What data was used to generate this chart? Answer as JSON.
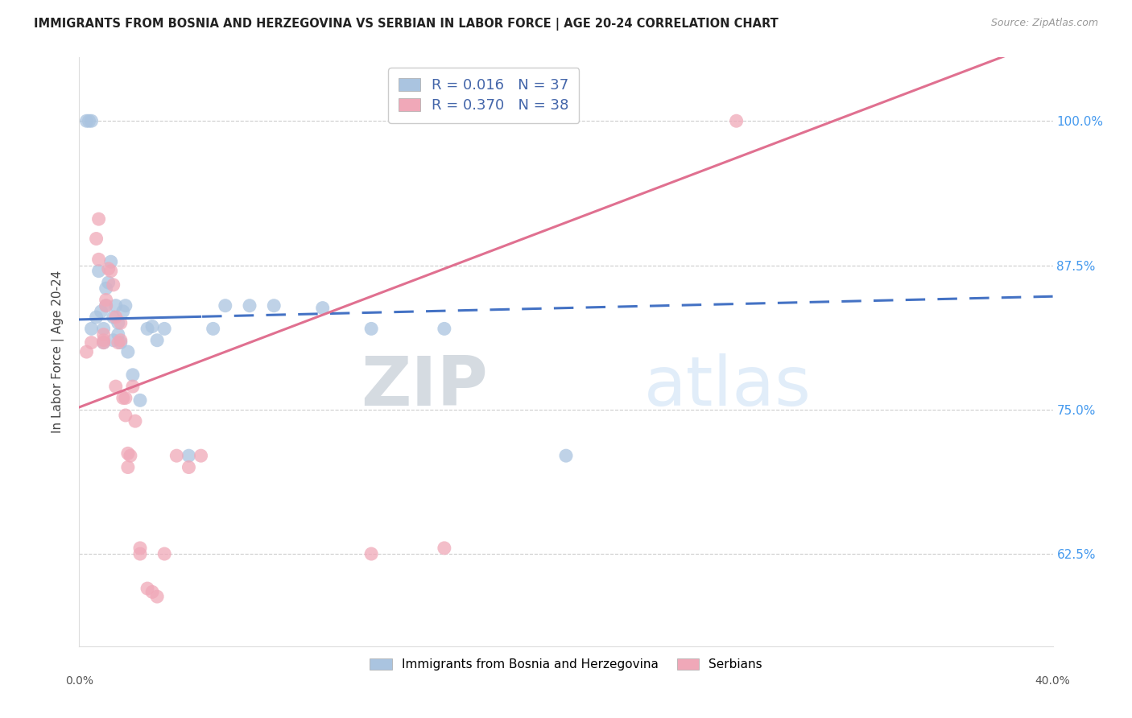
{
  "title": "IMMIGRANTS FROM BOSNIA AND HERZEGOVINA VS SERBIAN IN LABOR FORCE | AGE 20-24 CORRELATION CHART",
  "source": "Source: ZipAtlas.com",
  "ylabel": "In Labor Force | Age 20-24",
  "legend_label1": "Immigrants from Bosnia and Herzegovina",
  "legend_label2": "Serbians",
  "blue_color": "#aac4e0",
  "pink_color": "#f0a8b8",
  "blue_line_color": "#4472c4",
  "pink_line_color": "#e07090",
  "blue_scatter_x": [
    0.5,
    0.7,
    0.8,
    0.9,
    1.0,
    1.0,
    1.1,
    1.1,
    1.2,
    1.3,
    1.4,
    1.4,
    1.5,
    1.6,
    1.6,
    1.7,
    1.8,
    1.9,
    2.0,
    2.2,
    2.5,
    2.8,
    3.0,
    3.2,
    3.5,
    4.5,
    20.0,
    0.3,
    0.4,
    0.5,
    5.5,
    6.0,
    7.0,
    8.0,
    10.0,
    12.0,
    15.0
  ],
  "blue_scatter_y": [
    0.82,
    0.83,
    0.87,
    0.835,
    0.82,
    0.808,
    0.84,
    0.855,
    0.86,
    0.878,
    0.83,
    0.81,
    0.84,
    0.825,
    0.815,
    0.808,
    0.835,
    0.84,
    0.8,
    0.78,
    0.758,
    0.82,
    0.822,
    0.81,
    0.82,
    0.71,
    0.71,
    1.0,
    1.0,
    1.0,
    0.82,
    0.84,
    0.84,
    0.84,
    0.838,
    0.82,
    0.82
  ],
  "pink_scatter_x": [
    0.3,
    0.5,
    0.7,
    0.8,
    1.0,
    1.0,
    1.0,
    1.1,
    1.1,
    1.2,
    1.3,
    1.4,
    1.5,
    1.5,
    1.6,
    1.7,
    1.7,
    1.8,
    1.9,
    1.9,
    2.0,
    2.0,
    2.1,
    2.2,
    2.3,
    2.5,
    2.5,
    2.8,
    3.0,
    3.2,
    3.5,
    4.0,
    4.5,
    5.0,
    12.0,
    15.0,
    27.0,
    0.8
  ],
  "pink_scatter_y": [
    0.8,
    0.808,
    0.898,
    0.88,
    0.815,
    0.81,
    0.808,
    0.845,
    0.84,
    0.872,
    0.87,
    0.858,
    0.83,
    0.77,
    0.808,
    0.825,
    0.81,
    0.76,
    0.76,
    0.745,
    0.712,
    0.7,
    0.71,
    0.77,
    0.74,
    0.625,
    0.63,
    0.595,
    0.592,
    0.588,
    0.625,
    0.71,
    0.7,
    0.71,
    0.625,
    0.63,
    1.0,
    0.915
  ],
  "xmin": 0.0,
  "xmax": 40.0,
  "ymin": 0.545,
  "ymax": 1.055,
  "blue_reg_slope": 0.0005,
  "blue_reg_intercept": 0.828,
  "blue_reg_split": 5.0,
  "pink_reg_slope": 0.008,
  "pink_reg_intercept": 0.752,
  "yticks": [
    0.625,
    0.75,
    0.875,
    1.0
  ],
  "ytick_labels": [
    "62.5%",
    "75.0%",
    "87.5%",
    "100.0%"
  ],
  "watermark_zip": "ZIP",
  "watermark_atlas": "atlas"
}
